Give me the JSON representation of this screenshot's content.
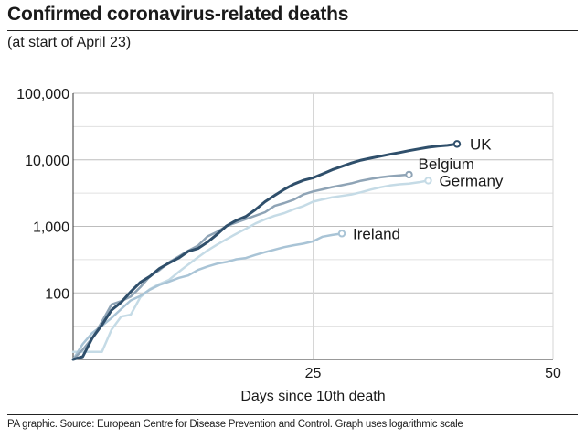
{
  "header": {
    "title": "Confirmed coronavirus-related deaths",
    "subtitle": "(at start of April 23)"
  },
  "footer": {
    "source": "PA graphic. Source: European Centre for Disease Prevention and Control. Graph uses logarithmic scale"
  },
  "chart_data": {
    "type": "line",
    "title": "Confirmed coronavirus-related deaths",
    "subtitle": "(at start of April 23)",
    "xlabel": "Days since 10th death",
    "ylabel": "",
    "xlim": [
      0,
      50
    ],
    "ylim": [
      10,
      100000
    ],
    "yscale": "log",
    "xticks": [
      25,
      50
    ],
    "xtick_labels": [
      "25",
      "50"
    ],
    "yticks": [
      100,
      1000,
      10000,
      100000
    ],
    "ytick_labels": [
      "100",
      "1,000",
      "10,000",
      "100,000"
    ],
    "grid": true,
    "legend": "direct labels at line ends",
    "series": [
      {
        "name": "UK",
        "color": "#2f4f6b",
        "points": [
          [
            0,
            10
          ],
          [
            1,
            11
          ],
          [
            2,
            21
          ],
          [
            3,
            33
          ],
          [
            4,
            55
          ],
          [
            5,
            72
          ],
          [
            6,
            104
          ],
          [
            7,
            144
          ],
          [
            8,
            177
          ],
          [
            9,
            233
          ],
          [
            10,
            281
          ],
          [
            11,
            335
          ],
          [
            12,
            422
          ],
          [
            13,
            465
          ],
          [
            14,
            578
          ],
          [
            15,
            760
          ],
          [
            16,
            1019
          ],
          [
            17,
            1228
          ],
          [
            18,
            1408
          ],
          [
            19,
            1789
          ],
          [
            20,
            2352
          ],
          [
            21,
            2921
          ],
          [
            22,
            3605
          ],
          [
            23,
            4313
          ],
          [
            24,
            4934
          ],
          [
            25,
            5373
          ],
          [
            26,
            6159
          ],
          [
            27,
            7097
          ],
          [
            28,
            7978
          ],
          [
            29,
            8958
          ],
          [
            30,
            9875
          ],
          [
            31,
            10612
          ],
          [
            32,
            11329
          ],
          [
            33,
            12107
          ],
          [
            34,
            12868
          ],
          [
            35,
            13729
          ],
          [
            36,
            14576
          ],
          [
            37,
            15464
          ],
          [
            38,
            16060
          ],
          [
            39,
            16509
          ],
          [
            40,
            17337
          ]
        ],
        "label": "UK"
      },
      {
        "name": "Belgium",
        "color": "#8fa4b6",
        "points": [
          [
            0,
            10
          ],
          [
            1,
            14
          ],
          [
            2,
            21
          ],
          [
            3,
            37
          ],
          [
            4,
            67
          ],
          [
            5,
            75
          ],
          [
            6,
            88
          ],
          [
            7,
            122
          ],
          [
            8,
            178
          ],
          [
            9,
            220
          ],
          [
            10,
            289
          ],
          [
            11,
            353
          ],
          [
            12,
            431
          ],
          [
            13,
            513
          ],
          [
            14,
            705
          ],
          [
            15,
            828
          ],
          [
            16,
            1011
          ],
          [
            17,
            1143
          ],
          [
            18,
            1283
          ],
          [
            19,
            1447
          ],
          [
            20,
            1632
          ],
          [
            21,
            2035
          ],
          [
            22,
            2240
          ],
          [
            23,
            2523
          ],
          [
            24,
            3019
          ],
          [
            25,
            3346
          ],
          [
            26,
            3600
          ],
          [
            27,
            3903
          ],
          [
            28,
            4157
          ],
          [
            29,
            4440
          ],
          [
            30,
            4857
          ],
          [
            31,
            5163
          ],
          [
            32,
            5453
          ],
          [
            33,
            5683
          ],
          [
            34,
            5828
          ],
          [
            35,
            5998
          ]
        ],
        "label": "Belgium"
      },
      {
        "name": "Germany",
        "color": "#c5dbe6",
        "points": [
          [
            0,
            13
          ],
          [
            1,
            13
          ],
          [
            2,
            13
          ],
          [
            3,
            13
          ],
          [
            4,
            28
          ],
          [
            5,
            44
          ],
          [
            6,
            47
          ],
          [
            7,
            86
          ],
          [
            8,
            114
          ],
          [
            9,
            136
          ],
          [
            10,
            157
          ],
          [
            11,
            206
          ],
          [
            12,
            267
          ],
          [
            13,
            342
          ],
          [
            14,
            433
          ],
          [
            15,
            533
          ],
          [
            16,
            645
          ],
          [
            17,
            775
          ],
          [
            18,
            920
          ],
          [
            19,
            1107
          ],
          [
            20,
            1275
          ],
          [
            21,
            1444
          ],
          [
            22,
            1584
          ],
          [
            23,
            1810
          ],
          [
            24,
            2016
          ],
          [
            25,
            2349
          ],
          [
            26,
            2544
          ],
          [
            27,
            2736
          ],
          [
            28,
            2871
          ],
          [
            29,
            3022
          ],
          [
            30,
            3254
          ],
          [
            31,
            3569
          ],
          [
            32,
            3868
          ],
          [
            33,
            4110
          ],
          [
            34,
            4294
          ],
          [
            35,
            4404
          ],
          [
            36,
            4598
          ],
          [
            37,
            4879
          ]
        ],
        "label": "Germany"
      },
      {
        "name": "Ireland",
        "color": "#a9c4d6",
        "points": [
          [
            0,
            10
          ],
          [
            1,
            17
          ],
          [
            2,
            25
          ],
          [
            3,
            32
          ],
          [
            4,
            42
          ],
          [
            5,
            57
          ],
          [
            6,
            77
          ],
          [
            7,
            90
          ],
          [
            8,
            112
          ],
          [
            9,
            132
          ],
          [
            10,
            148
          ],
          [
            11,
            168
          ],
          [
            12,
            183
          ],
          [
            13,
            221
          ],
          [
            14,
            249
          ],
          [
            15,
            275
          ],
          [
            16,
            292
          ],
          [
            17,
            320
          ],
          [
            18,
            335
          ],
          [
            19,
            372
          ],
          [
            20,
            410
          ],
          [
            21,
            448
          ],
          [
            22,
            488
          ],
          [
            23,
            521
          ],
          [
            24,
            550
          ],
          [
            25,
            595
          ],
          [
            26,
            700
          ],
          [
            27,
            743
          ],
          [
            28,
            780
          ]
        ],
        "label": "Ireland"
      }
    ]
  }
}
